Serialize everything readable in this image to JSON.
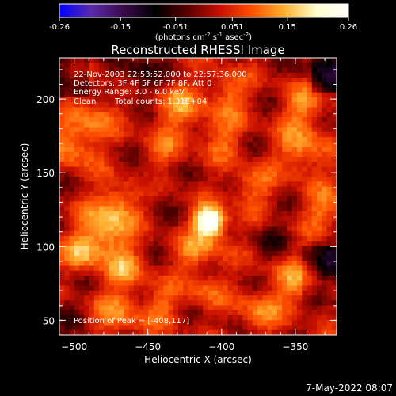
{
  "chart_data": {
    "type": "heatmap",
    "title": "Reconstructed RHESSI Image",
    "xlabel": "Heliocentric X (arcsec)",
    "ylabel": "Heliocentric Y (arcsec)",
    "xlim": [
      -510,
      -322
    ],
    "ylim": [
      40,
      228
    ],
    "xticks": [
      -500,
      -450,
      -400,
      -350
    ],
    "yticks": [
      50,
      100,
      150,
      200
    ],
    "colorbar": {
      "min": -0.26,
      "max": 0.26,
      "ticks": [
        "-0.26",
        "-0.15",
        "-0.051",
        "0.051",
        "0.15",
        "0.26"
      ],
      "units_parts": [
        "(photons cm",
        "-2",
        " s",
        "-1",
        " asec",
        "-2",
        ")"
      ],
      "stops": [
        "#0000ff",
        "#5a2aa8",
        "#3a0a4a",
        "#000000",
        "#5a0000",
        "#c81000",
        "#ff5000",
        "#ffb030",
        "#ffffd0",
        "#ffffff"
      ]
    },
    "annotations": [
      "22-Nov-2003 22:53:52.000 to 22:57:36.000",
      "Detectors: 3F 4F 5F 6F 7F 8F, Att 0",
      "Energy Range: 3.0 - 6.0 keV",
      "Clean",
      "Total counts: 1.31E+04"
    ],
    "peak_label": "Position of Peak = [-408,117]",
    "peak": {
      "x": -408,
      "y": 117,
      "value": 0.26
    },
    "blobs": [
      {
        "x": -408,
        "y": 117,
        "s": 7,
        "a": 0.27
      },
      {
        "x": -405,
        "y": 105,
        "s": 10,
        "a": 0.06
      },
      {
        "x": -420,
        "y": 95,
        "s": 9,
        "a": 0.08
      },
      {
        "x": -480,
        "y": 110,
        "s": 12,
        "a": 0.14
      },
      {
        "x": -470,
        "y": 130,
        "s": 10,
        "a": 0.1
      },
      {
        "x": -495,
        "y": 95,
        "s": 9,
        "a": 0.1
      },
      {
        "x": -465,
        "y": 85,
        "s": 10,
        "a": 0.1
      },
      {
        "x": -470,
        "y": 55,
        "s": 12,
        "a": 0.09
      },
      {
        "x": -440,
        "y": 60,
        "s": 10,
        "a": 0.07
      },
      {
        "x": -500,
        "y": 170,
        "s": 12,
        "a": 0.11
      },
      {
        "x": -485,
        "y": 190,
        "s": 10,
        "a": 0.08
      },
      {
        "x": -430,
        "y": 195,
        "s": 12,
        "a": 0.1
      },
      {
        "x": -400,
        "y": 175,
        "s": 11,
        "a": 0.08
      },
      {
        "x": -440,
        "y": 165,
        "s": 10,
        "a": 0.06
      },
      {
        "x": -380,
        "y": 140,
        "s": 10,
        "a": 0.09
      },
      {
        "x": -395,
        "y": 205,
        "s": 10,
        "a": 0.09
      },
      {
        "x": -345,
        "y": 165,
        "s": 12,
        "a": 0.11
      },
      {
        "x": -345,
        "y": 195,
        "s": 10,
        "a": 0.1
      },
      {
        "x": -330,
        "y": 125,
        "s": 11,
        "a": 0.09
      },
      {
        "x": -350,
        "y": 75,
        "s": 12,
        "a": 0.1
      },
      {
        "x": -375,
        "y": 55,
        "s": 10,
        "a": 0.09
      },
      {
        "x": -410,
        "y": 70,
        "s": 10,
        "a": 0.07
      },
      {
        "x": -455,
        "y": 215,
        "s": 10,
        "a": -0.08
      },
      {
        "x": -325,
        "y": 90,
        "s": 10,
        "a": -0.07
      },
      {
        "x": -365,
        "y": 105,
        "s": 8,
        "a": -0.05
      },
      {
        "x": -330,
        "y": 220,
        "s": 10,
        "a": -0.06
      },
      {
        "x": -505,
        "y": 55,
        "s": 8,
        "a": -0.04
      },
      {
        "x": -450,
        "y": 145,
        "s": 6,
        "a": -0.03
      }
    ],
    "grid_cells": 56
  },
  "footer": {
    "date": "7-May-2022 08:07"
  }
}
